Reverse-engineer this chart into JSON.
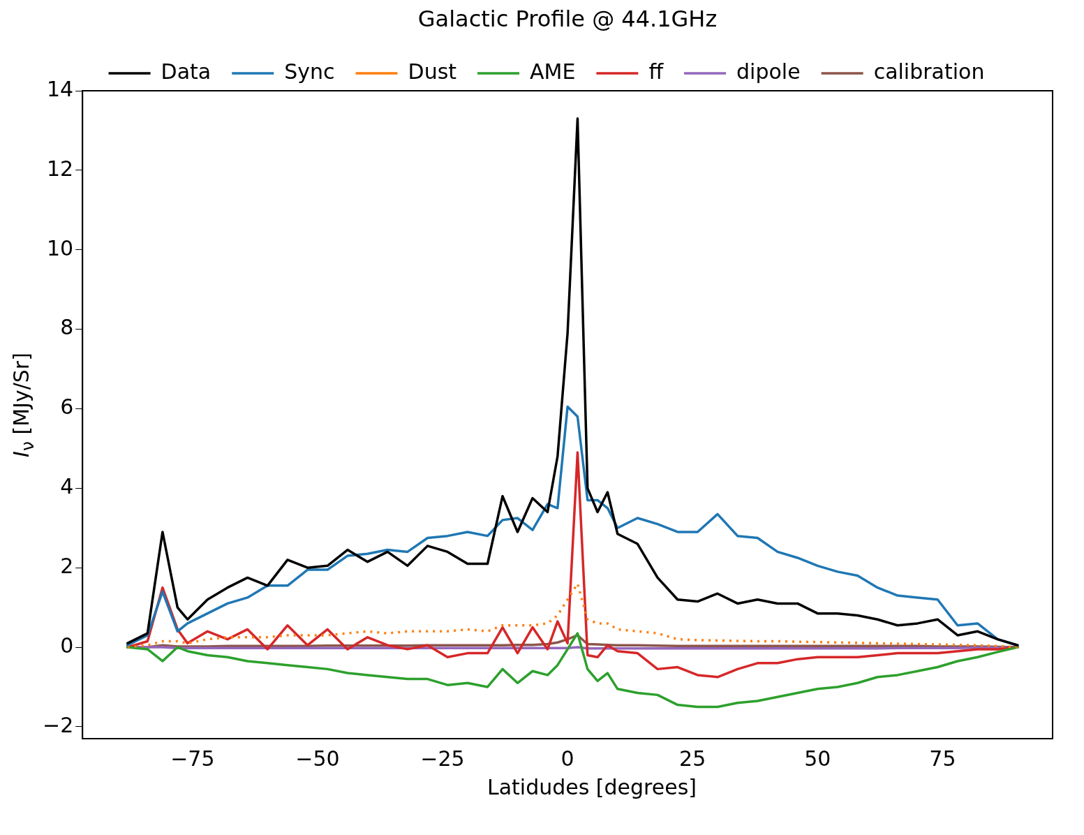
{
  "chart_data": {
    "type": "line",
    "title": "Galactic Profile @ 44.1GHz",
    "xlabel": "Latidudes [degrees]",
    "ylabel": "I$_{ν}$ [MJy/Sr]",
    "x": [
      -88,
      -84,
      -81,
      -78,
      -76,
      -72,
      -68,
      -64,
      -60,
      -56,
      -52,
      -48,
      -44,
      -40,
      -36,
      -32,
      -28,
      -24,
      -20,
      -16,
      -13,
      -10,
      -7,
      -4,
      -2,
      0,
      2,
      4,
      6,
      8,
      10,
      14,
      18,
      22,
      26,
      30,
      34,
      38,
      42,
      46,
      50,
      54,
      58,
      62,
      66,
      70,
      74,
      78,
      82,
      86,
      90
    ],
    "series": [
      {
        "name": "Data",
        "color": "#000000",
        "values": [
          0.1,
          0.35,
          2.9,
          1.0,
          0.7,
          1.2,
          1.5,
          1.75,
          1.55,
          2.2,
          2.0,
          2.05,
          2.45,
          2.15,
          2.4,
          2.05,
          2.55,
          2.4,
          2.1,
          2.1,
          3.8,
          2.9,
          3.75,
          3.4,
          4.8,
          7.9,
          13.3,
          4.0,
          3.4,
          3.9,
          2.85,
          2.6,
          1.75,
          1.2,
          1.15,
          1.35,
          1.1,
          1.2,
          1.1,
          1.1,
          0.85,
          0.85,
          0.8,
          0.7,
          0.55,
          0.6,
          0.7,
          0.3,
          0.4,
          0.2,
          0.05
        ]
      },
      {
        "name": "Sync",
        "color": "#1f77b4",
        "values": [
          0.05,
          0.3,
          1.4,
          0.4,
          0.6,
          0.85,
          1.1,
          1.25,
          1.55,
          1.55,
          1.95,
          1.95,
          2.3,
          2.35,
          2.45,
          2.4,
          2.75,
          2.8,
          2.9,
          2.8,
          3.2,
          3.25,
          2.95,
          3.6,
          3.5,
          6.05,
          5.8,
          3.7,
          3.7,
          3.5,
          3.0,
          3.25,
          3.1,
          2.9,
          2.9,
          3.35,
          2.8,
          2.75,
          2.4,
          2.25,
          2.05,
          1.9,
          1.8,
          1.5,
          1.3,
          1.25,
          1.2,
          0.55,
          0.6,
          0.2,
          0.05
        ]
      },
      {
        "name": "Dust",
        "color": "#ff7f0e",
        "line_style": "dotted",
        "values": [
          0.0,
          0.05,
          0.15,
          0.15,
          0.1,
          0.2,
          0.25,
          0.25,
          0.25,
          0.3,
          0.3,
          0.3,
          0.35,
          0.4,
          0.35,
          0.4,
          0.4,
          0.4,
          0.45,
          0.4,
          0.55,
          0.55,
          0.55,
          0.6,
          0.8,
          1.2,
          1.6,
          0.7,
          0.6,
          0.6,
          0.45,
          0.4,
          0.35,
          0.2,
          0.18,
          0.17,
          0.16,
          0.15,
          0.15,
          0.14,
          0.13,
          0.12,
          0.11,
          0.1,
          0.09,
          0.08,
          0.07,
          0.06,
          0.05,
          0.03,
          0.0
        ]
      },
      {
        "name": "AME",
        "color": "#2ca02c",
        "values": [
          0.0,
          -0.05,
          -0.35,
          0.0,
          -0.1,
          -0.2,
          -0.25,
          -0.35,
          -0.4,
          -0.45,
          -0.5,
          -0.55,
          -0.65,
          -0.7,
          -0.75,
          -0.8,
          -0.8,
          -0.95,
          -0.9,
          -1.0,
          -0.55,
          -0.9,
          -0.6,
          -0.7,
          -0.45,
          -0.05,
          0.35,
          -0.55,
          -0.85,
          -0.65,
          -1.05,
          -1.15,
          -1.2,
          -1.45,
          -1.5,
          -1.5,
          -1.4,
          -1.35,
          -1.25,
          -1.15,
          -1.05,
          -1.0,
          -0.9,
          -0.75,
          -0.7,
          -0.6,
          -0.5,
          -0.35,
          -0.25,
          -0.12,
          0.0
        ]
      },
      {
        "name": "ff",
        "color": "#d62728",
        "values": [
          0.0,
          0.15,
          1.5,
          0.45,
          0.1,
          0.4,
          0.2,
          0.45,
          -0.05,
          0.55,
          0.05,
          0.45,
          -0.05,
          0.25,
          0.05,
          -0.05,
          0.05,
          -0.25,
          -0.15,
          -0.15,
          0.5,
          -0.15,
          0.5,
          -0.05,
          0.65,
          0.1,
          4.9,
          -0.2,
          -0.25,
          0.05,
          -0.1,
          -0.15,
          -0.55,
          -0.5,
          -0.7,
          -0.75,
          -0.55,
          -0.4,
          -0.4,
          -0.3,
          -0.25,
          -0.25,
          -0.25,
          -0.2,
          -0.15,
          -0.15,
          -0.15,
          -0.1,
          -0.05,
          -0.05,
          0.0
        ]
      },
      {
        "name": "dipole",
        "color": "#9467bd",
        "values": [
          0.0,
          0.0,
          0.0,
          -0.02,
          -0.02,
          -0.02,
          -0.02,
          -0.02,
          -0.02,
          -0.02,
          -0.02,
          -0.02,
          -0.02,
          -0.02,
          -0.02,
          -0.02,
          -0.02,
          -0.02,
          -0.02,
          -0.02,
          -0.02,
          -0.02,
          -0.02,
          -0.02,
          -0.02,
          -0.02,
          0.0,
          -0.03,
          -0.03,
          -0.03,
          -0.03,
          -0.03,
          -0.03,
          -0.03,
          -0.03,
          -0.03,
          -0.03,
          -0.03,
          -0.03,
          -0.03,
          -0.03,
          -0.03,
          -0.03,
          -0.03,
          -0.02,
          -0.02,
          -0.02,
          -0.02,
          -0.01,
          -0.01,
          0.0
        ]
      },
      {
        "name": "calibration",
        "color": "#8c564b",
        "values": [
          0.0,
          0.0,
          0.05,
          0.02,
          0.02,
          0.02,
          0.03,
          0.03,
          0.03,
          0.03,
          0.03,
          0.04,
          0.04,
          0.04,
          0.04,
          0.04,
          0.05,
          0.05,
          0.05,
          0.05,
          0.05,
          0.06,
          0.06,
          0.08,
          0.12,
          0.2,
          0.3,
          0.08,
          0.07,
          0.06,
          0.05,
          0.05,
          0.04,
          0.03,
          0.03,
          0.03,
          0.03,
          0.03,
          0.03,
          0.03,
          0.03,
          0.03,
          0.03,
          0.03,
          0.03,
          0.03,
          0.02,
          0.02,
          0.02,
          0.01,
          0.0
        ]
      }
    ],
    "xlim": [
      -97,
      97
    ],
    "ylim": [
      -2.3,
      14
    ],
    "xticks": [
      {
        "value": -75,
        "label": "−75"
      },
      {
        "value": -50,
        "label": "−50"
      },
      {
        "value": -25,
        "label": "−25"
      },
      0,
      25,
      50,
      75
    ],
    "yticks": [
      {
        "value": -2,
        "label": "−2"
      },
      0,
      2,
      4,
      6,
      8,
      10,
      12,
      14
    ],
    "grid": false,
    "legend": "top",
    "marker": "none",
    "line_style": "solid"
  }
}
